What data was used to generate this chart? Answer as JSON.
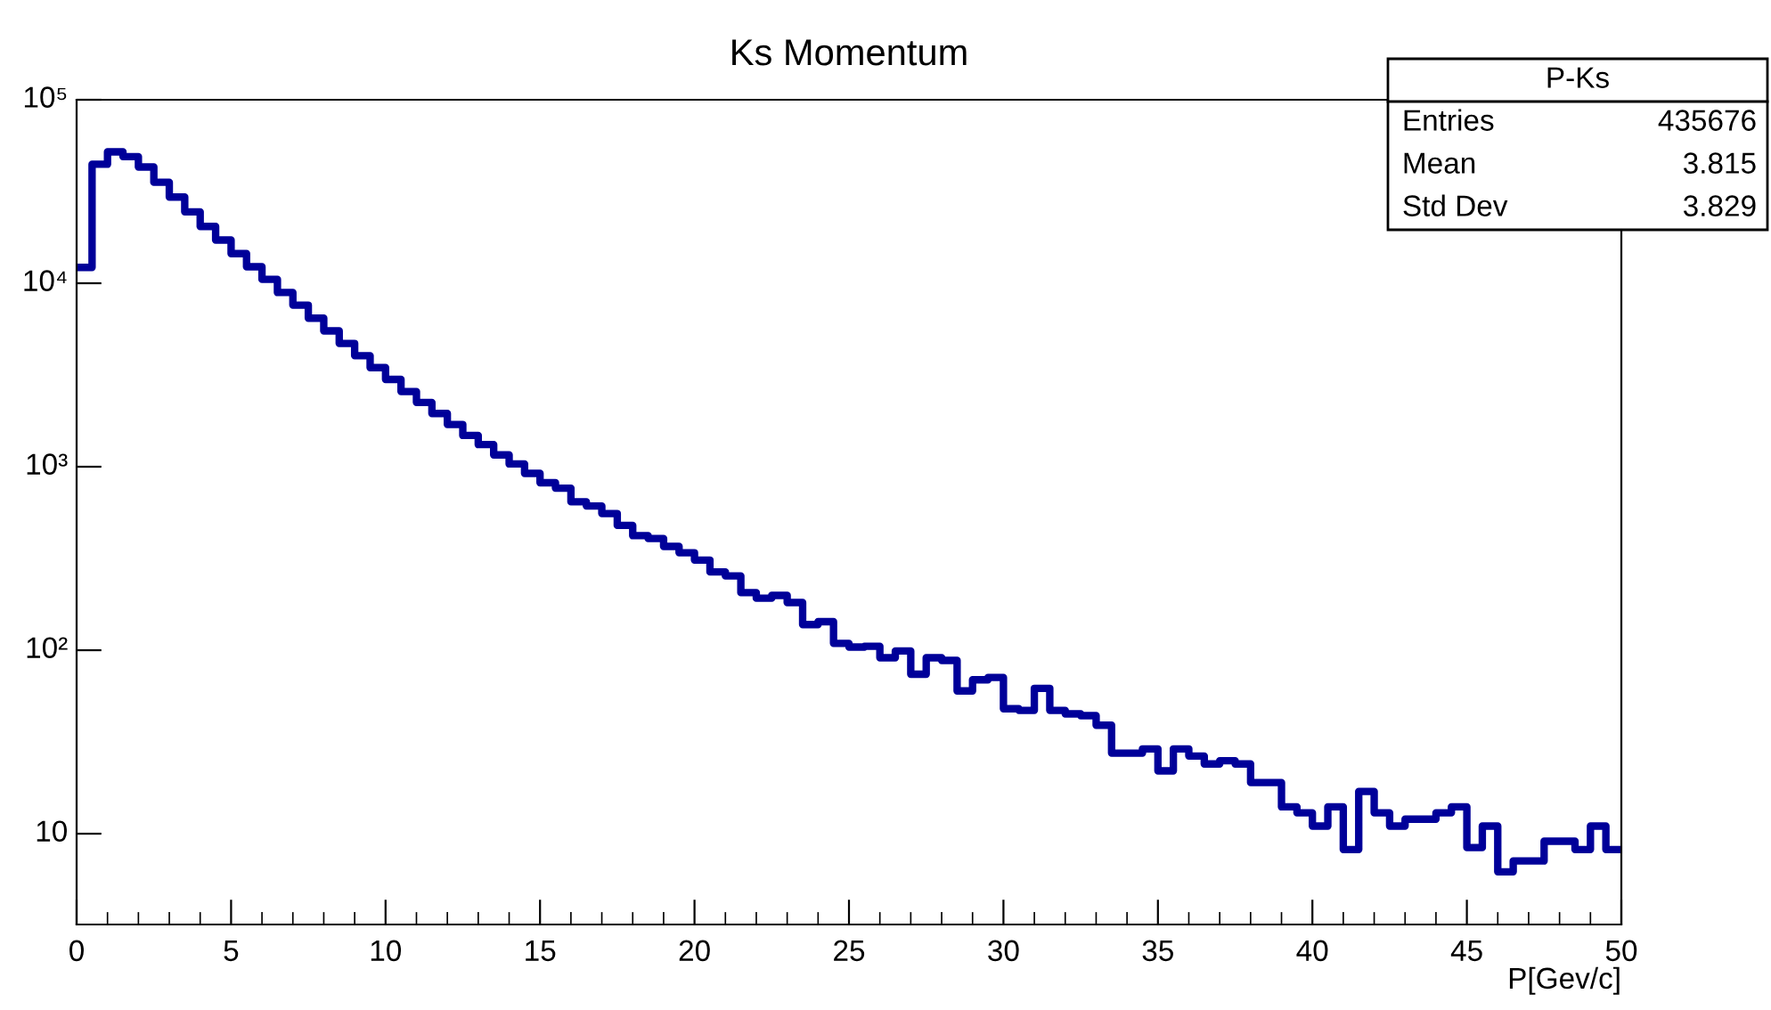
{
  "chart_data": {
    "type": "histogram",
    "title": "Ks Momentum",
    "xlabel": "P[Gev/c]",
    "bins": [
      0,
      0.5,
      1,
      1.5,
      2,
      2.5,
      3,
      3.5,
      4,
      4.5,
      5,
      5.5,
      6,
      6.5,
      7,
      7.5,
      8,
      8.5,
      9,
      9.5,
      10,
      10.5,
      11,
      11.5,
      12,
      12.5,
      13,
      13.5,
      14,
      14.5,
      15,
      15.5,
      16,
      16.5,
      17,
      17.5,
      18,
      18.5,
      19,
      19.5,
      20,
      20.5,
      21,
      21.5,
      22,
      22.5,
      23,
      23.5,
      24,
      24.5,
      25,
      25.5,
      26,
      26.5,
      27,
      27.5,
      28,
      28.5,
      29,
      29.5,
      30,
      30.5,
      31,
      31.5,
      32,
      32.5,
      33,
      33.5,
      34,
      34.5,
      35,
      35.5,
      36,
      36.5,
      37,
      37.5,
      38,
      38.5,
      39,
      39.5,
      40,
      40.5,
      41,
      41.5,
      42,
      42.5,
      43,
      43.5,
      44,
      44.5,
      45,
      45.5,
      46,
      46.5,
      47,
      47.5,
      48,
      48.5,
      49,
      49.5,
      50
    ],
    "values": [
      12200,
      44500,
      52000,
      49000,
      43000,
      35500,
      29500,
      24500,
      20400,
      17200,
      14500,
      12300,
      10500,
      8900,
      7600,
      6450,
      5500,
      4700,
      4030,
      3470,
      2990,
      2570,
      2240,
      1950,
      1700,
      1480,
      1320,
      1160,
      1035,
      920,
      818,
      764,
      644,
      611,
      556,
      479,
      421,
      406,
      368,
      340,
      310,
      267,
      254,
      206,
      192,
      199,
      182,
      138,
      143,
      109,
      104,
      105,
      91,
      99,
      74,
      91,
      88,
      60,
      69,
      71,
      48,
      47,
      62,
      47,
      45,
      44,
      39,
      27.5,
      27.5,
      29,
      22,
      29,
      26.5,
      24,
      25,
      24,
      19,
      19,
      14,
      13,
      11,
      14,
      8.2,
      17,
      13,
      11,
      12,
      12,
      13,
      14,
      8.4,
      11,
      6.2,
      7.1,
      7.1,
      9.1,
      9.1,
      8.2,
      11,
      8.2
    ],
    "color": "#000099",
    "log": "y",
    "xlim": [
      0,
      50
    ],
    "xticks": [
      0,
      5,
      10,
      15,
      20,
      25,
      30,
      35,
      40,
      45,
      50
    ],
    "ylim": [
      3.2,
      100000
    ],
    "yticks": [
      10,
      {
        "value": 100,
        "label": "10²"
      },
      {
        "value": 1000,
        "label": "10³"
      },
      {
        "value": 10000,
        "label": "10⁴"
      },
      {
        "value": 100000,
        "label": "10⁵"
      }
    ],
    "grid": false,
    "annotations": [
      "P-Ks",
      "Entries",
      "435676",
      "Mean",
      "3.815",
      "Std Dev",
      "3.829"
    ]
  }
}
